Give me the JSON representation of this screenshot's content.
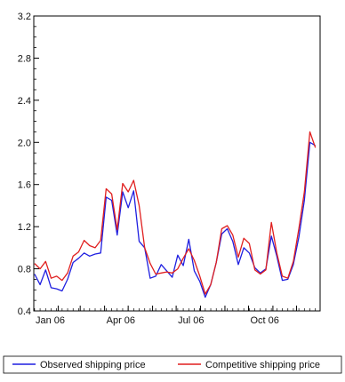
{
  "chart_data": {
    "type": "line",
    "title": "",
    "xlabel": "",
    "ylabel": "",
    "x_ticks": [
      "Jan 06",
      "Apr 06",
      "Jul 06",
      "Oct 06"
    ],
    "y_ticks": [
      "0.4",
      "0.8",
      "1.2",
      "1.6",
      "2.0",
      "2.4",
      "2.8",
      "3.2"
    ],
    "y_tick_values": [
      0.4,
      0.8,
      1.2,
      1.6,
      2.0,
      2.4,
      2.8,
      3.2
    ],
    "ylim": [
      0.4,
      3.2
    ],
    "x_start": "2006-01-01",
    "x_end": "2006-12-31",
    "x_tick_dates": [
      "2006-01-01",
      "2006-04-01",
      "2006-07-01",
      "2006-10-01"
    ],
    "grid": false,
    "legend_position": "bottom",
    "x": [
      "2006-01-02",
      "2006-01-09",
      "2006-01-16",
      "2006-01-23",
      "2006-01-30",
      "2006-02-06",
      "2006-02-13",
      "2006-02-20",
      "2006-02-27",
      "2006-03-06",
      "2006-03-13",
      "2006-03-20",
      "2006-03-27",
      "2006-04-03",
      "2006-04-10",
      "2006-04-17",
      "2006-04-24",
      "2006-05-01",
      "2006-05-08",
      "2006-05-15",
      "2006-05-22",
      "2006-05-29",
      "2006-06-05",
      "2006-06-12",
      "2006-06-19",
      "2006-06-26",
      "2006-07-03",
      "2006-07-10",
      "2006-07-17",
      "2006-07-24",
      "2006-07-31",
      "2006-08-07",
      "2006-08-14",
      "2006-08-21",
      "2006-08-28",
      "2006-09-04",
      "2006-09-11",
      "2006-09-18",
      "2006-09-25",
      "2006-10-02",
      "2006-10-09",
      "2006-10-16",
      "2006-10-23",
      "2006-10-30",
      "2006-11-06",
      "2006-11-13",
      "2006-11-20",
      "2006-11-27",
      "2006-12-04",
      "2006-12-11",
      "2006-12-18",
      "2006-12-25"
    ],
    "series": [
      {
        "name": "Observed shipping price",
        "color": "#1f1fe0",
        "values": [
          0.75,
          0.65,
          0.79,
          0.62,
          0.61,
          0.59,
          0.7,
          0.86,
          0.9,
          0.95,
          0.92,
          0.94,
          0.95,
          1.48,
          1.45,
          1.12,
          1.53,
          1.38,
          1.54,
          1.06,
          1.0,
          0.71,
          0.73,
          0.84,
          0.78,
          0.72,
          0.93,
          0.83,
          1.08,
          0.78,
          0.68,
          0.53,
          0.65,
          0.86,
          1.13,
          1.18,
          1.06,
          0.84,
          1.0,
          0.95,
          0.81,
          0.76,
          0.8,
          1.11,
          0.92,
          0.69,
          0.7,
          0.84,
          1.1,
          1.45,
          2.0,
          1.97
        ]
      },
      {
        "name": "Competitive shipping price",
        "color": "#e01f1f",
        "values": [
          0.85,
          0.8,
          0.87,
          0.71,
          0.73,
          0.69,
          0.76,
          0.92,
          0.96,
          1.07,
          1.02,
          1.0,
          1.07,
          1.56,
          1.51,
          1.17,
          1.61,
          1.53,
          1.64,
          1.4,
          1.0,
          0.85,
          0.75,
          0.76,
          0.77,
          0.76,
          0.8,
          0.9,
          0.99,
          0.88,
          0.73,
          0.56,
          0.65,
          0.86,
          1.18,
          1.21,
          1.12,
          0.91,
          1.09,
          1.04,
          0.79,
          0.75,
          0.79,
          1.24,
          0.95,
          0.73,
          0.71,
          0.87,
          1.18,
          1.53,
          2.1,
          1.95
        ]
      }
    ]
  }
}
